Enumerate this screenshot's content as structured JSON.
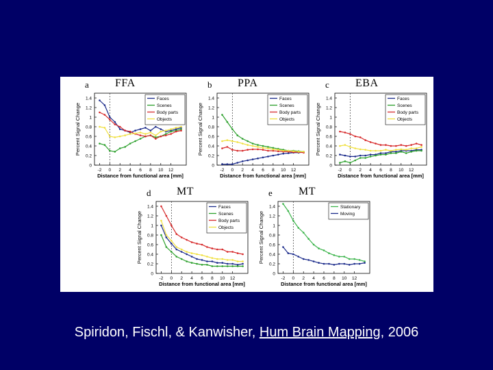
{
  "citation": {
    "prefix": "Spiridon, Fischl, & Kanwisher, ",
    "journal": "Hum Brain Mapping",
    "suffix": ", 2006"
  },
  "colors": {
    "Faces": "#1a2a8a",
    "Scenes": "#2ca02c",
    "Body parts": "#d62728",
    "Objects": "#f0e040",
    "Stationary": "#3cb44b",
    "Moving": "#1a2a8a"
  },
  "chart_data": [
    {
      "id": "a",
      "type": "line",
      "title": "FFA",
      "xlabel": "Distance from functional area",
      "xunit": "[mm]",
      "ylabel": "Percent Signal Change",
      "x": [
        -2,
        -1,
        0,
        1,
        2,
        3,
        4,
        5,
        6,
        7,
        8,
        9,
        10,
        11,
        12,
        13,
        14
      ],
      "xticks": [
        -2,
        0,
        2,
        4,
        6,
        8,
        10,
        12
      ],
      "xlim": [
        -3,
        15
      ],
      "yticks": [
        0,
        0.2,
        0.4,
        0.6,
        0.8,
        1,
        1.2,
        1.4
      ],
      "ylim": [
        0,
        1.5
      ],
      "legend": "top-right",
      "series": [
        {
          "name": "Faces",
          "values": [
            1.35,
            1.25,
            1.0,
            0.9,
            0.75,
            0.72,
            0.68,
            0.72,
            0.75,
            0.78,
            0.72,
            0.8,
            0.75,
            0.7,
            0.72,
            0.75,
            0.78
          ]
        },
        {
          "name": "Scenes",
          "values": [
            0.45,
            0.42,
            0.3,
            0.28,
            0.35,
            0.38,
            0.45,
            0.5,
            0.55,
            0.6,
            0.62,
            0.58,
            0.6,
            0.65,
            0.7,
            0.72,
            0.75
          ]
        },
        {
          "name": "Body parts",
          "values": [
            1.1,
            1.05,
            0.95,
            0.85,
            0.8,
            0.72,
            0.7,
            0.65,
            0.62,
            0.6,
            0.62,
            0.55,
            0.6,
            0.62,
            0.65,
            0.7,
            0.72
          ]
        },
        {
          "name": "Objects",
          "values": [
            0.8,
            0.78,
            0.6,
            0.58,
            0.6,
            0.62,
            0.65,
            0.66,
            0.68,
            0.65,
            0.68,
            0.62,
            0.7,
            0.72,
            0.75,
            0.78,
            0.8
          ]
        }
      ]
    },
    {
      "id": "b",
      "type": "line",
      "title": "PPA",
      "xlabel": "Distance from functional area",
      "xunit": "[mm]",
      "ylabel": "Percent Signal Change",
      "x": [
        -2,
        -1,
        0,
        1,
        2,
        3,
        4,
        5,
        6,
        7,
        8,
        9,
        10,
        11,
        12,
        13,
        14
      ],
      "xticks": [
        -2,
        0,
        2,
        4,
        6,
        8,
        10,
        12
      ],
      "xlim": [
        -3,
        15
      ],
      "yticks": [
        0,
        0.2,
        0.4,
        0.6,
        0.8,
        1,
        1.2,
        1.4
      ],
      "ylim": [
        0,
        1.5
      ],
      "legend": "top-right",
      "series": [
        {
          "name": "Faces",
          "values": [
            0.02,
            0.02,
            0.02,
            0.05,
            0.08,
            0.1,
            0.12,
            0.14,
            0.16,
            0.18,
            0.2,
            0.22,
            0.24,
            0.25,
            0.26,
            0.26,
            0.27
          ]
        },
        {
          "name": "Scenes",
          "values": [
            1.05,
            0.9,
            0.75,
            0.62,
            0.55,
            0.5,
            0.45,
            0.42,
            0.4,
            0.38,
            0.36,
            0.34,
            0.32,
            0.3,
            0.3,
            0.29,
            0.28
          ]
        },
        {
          "name": "Body parts",
          "values": [
            0.35,
            0.38,
            0.32,
            0.3,
            0.3,
            0.32,
            0.33,
            0.33,
            0.32,
            0.3,
            0.3,
            0.29,
            0.28,
            0.28,
            0.27,
            0.27,
            0.26
          ]
        },
        {
          "name": "Objects",
          "values": [
            0.5,
            0.52,
            0.5,
            0.48,
            0.45,
            0.42,
            0.4,
            0.38,
            0.36,
            0.35,
            0.33,
            0.32,
            0.3,
            0.3,
            0.29,
            0.28,
            0.28
          ]
        }
      ]
    },
    {
      "id": "c",
      "type": "line",
      "title": "EBA",
      "xlabel": "Distance from functional area",
      "xunit": "[mm]",
      "ylabel": "Percent Signal Change",
      "x": [
        -2,
        -1,
        0,
        1,
        2,
        3,
        4,
        5,
        6,
        7,
        8,
        9,
        10,
        11,
        12,
        13,
        14
      ],
      "xticks": [
        -2,
        0,
        2,
        4,
        6,
        8,
        10,
        12
      ],
      "xlim": [
        -3,
        15
      ],
      "yticks": [
        0,
        0.2,
        0.4,
        0.6,
        0.8,
        1,
        1.2,
        1.4
      ],
      "ylim": [
        0,
        1.5
      ],
      "legend": "top-right",
      "series": [
        {
          "name": "Faces",
          "values": [
            0.22,
            0.2,
            0.18,
            0.18,
            0.2,
            0.2,
            0.22,
            0.22,
            0.25,
            0.25,
            0.28,
            0.28,
            0.3,
            0.3,
            0.3,
            0.32,
            0.32
          ]
        },
        {
          "name": "Scenes",
          "values": [
            0.05,
            0.08,
            0.05,
            0.1,
            0.15,
            0.15,
            0.18,
            0.2,
            0.22,
            0.22,
            0.25,
            0.25,
            0.28,
            0.25,
            0.28,
            0.3,
            0.3
          ]
        },
        {
          "name": "Body parts",
          "values": [
            0.7,
            0.68,
            0.65,
            0.6,
            0.58,
            0.52,
            0.48,
            0.45,
            0.42,
            0.42,
            0.4,
            0.4,
            0.42,
            0.4,
            0.42,
            0.45,
            0.42
          ]
        },
        {
          "name": "Objects",
          "values": [
            0.4,
            0.42,
            0.38,
            0.35,
            0.33,
            0.32,
            0.3,
            0.3,
            0.3,
            0.32,
            0.3,
            0.32,
            0.33,
            0.32,
            0.35,
            0.35,
            0.38
          ]
        }
      ]
    },
    {
      "id": "d",
      "type": "line",
      "title": "MT",
      "xlabel": "Distance from functional area",
      "xunit": "[mm]",
      "ylabel": "Percent Signal Change",
      "x": [
        -2,
        -1,
        0,
        1,
        2,
        3,
        4,
        5,
        6,
        7,
        8,
        9,
        10,
        11,
        12,
        13,
        14
      ],
      "xticks": [
        -2,
        0,
        2,
        4,
        6,
        8,
        10,
        12
      ],
      "xlim": [
        -3,
        15
      ],
      "yticks": [
        0,
        0.2,
        0.4,
        0.6,
        0.8,
        1,
        1.2,
        1.4
      ],
      "ylim": [
        0,
        1.5
      ],
      "legend": "top-right",
      "series": [
        {
          "name": "Faces",
          "values": [
            1.0,
            0.75,
            0.62,
            0.5,
            0.45,
            0.4,
            0.35,
            0.3,
            0.28,
            0.25,
            0.25,
            0.22,
            0.22,
            0.2,
            0.2,
            0.18,
            0.2
          ]
        },
        {
          "name": "Scenes",
          "values": [
            0.8,
            0.55,
            0.45,
            0.35,
            0.3,
            0.25,
            0.22,
            0.2,
            0.18,
            0.18,
            0.15,
            0.15,
            0.15,
            0.15,
            0.15,
            0.15,
            0.15
          ]
        },
        {
          "name": "Body parts",
          "values": [
            1.4,
            1.2,
            1.0,
            0.82,
            0.75,
            0.7,
            0.65,
            0.62,
            0.6,
            0.55,
            0.52,
            0.5,
            0.5,
            0.45,
            0.45,
            0.42,
            0.4
          ]
        },
        {
          "name": "Objects",
          "values": [
            1.1,
            0.8,
            0.68,
            0.55,
            0.5,
            0.45,
            0.42,
            0.4,
            0.38,
            0.35,
            0.32,
            0.3,
            0.3,
            0.28,
            0.28,
            0.25,
            0.25
          ]
        }
      ]
    },
    {
      "id": "e",
      "type": "line",
      "title": "MT",
      "xlabel": "Distance from functional area",
      "xunit": "[mm]",
      "ylabel": "Percent Signal Change",
      "x": [
        -2,
        -1,
        0,
        1,
        2,
        3,
        4,
        5,
        6,
        7,
        8,
        9,
        10,
        11,
        12,
        13,
        14
      ],
      "xticks": [
        -2,
        0,
        2,
        4,
        6,
        8,
        10,
        12
      ],
      "xlim": [
        -3,
        15
      ],
      "yticks": [
        0,
        0.2,
        0.4,
        0.6,
        0.8,
        1,
        1.2,
        1.4
      ],
      "ylim": [
        0,
        1.5
      ],
      "legend": "top-right",
      "series": [
        {
          "name": "Stationary",
          "values": [
            1.45,
            1.3,
            1.1,
            0.95,
            0.85,
            0.72,
            0.6,
            0.52,
            0.48,
            0.42,
            0.38,
            0.35,
            0.35,
            0.3,
            0.3,
            0.28,
            0.25
          ]
        },
        {
          "name": "Moving",
          "values": [
            0.55,
            0.42,
            0.4,
            0.35,
            0.3,
            0.28,
            0.25,
            0.22,
            0.2,
            0.2,
            0.18,
            0.2,
            0.2,
            0.18,
            0.2,
            0.2,
            0.22
          ]
        }
      ]
    }
  ]
}
